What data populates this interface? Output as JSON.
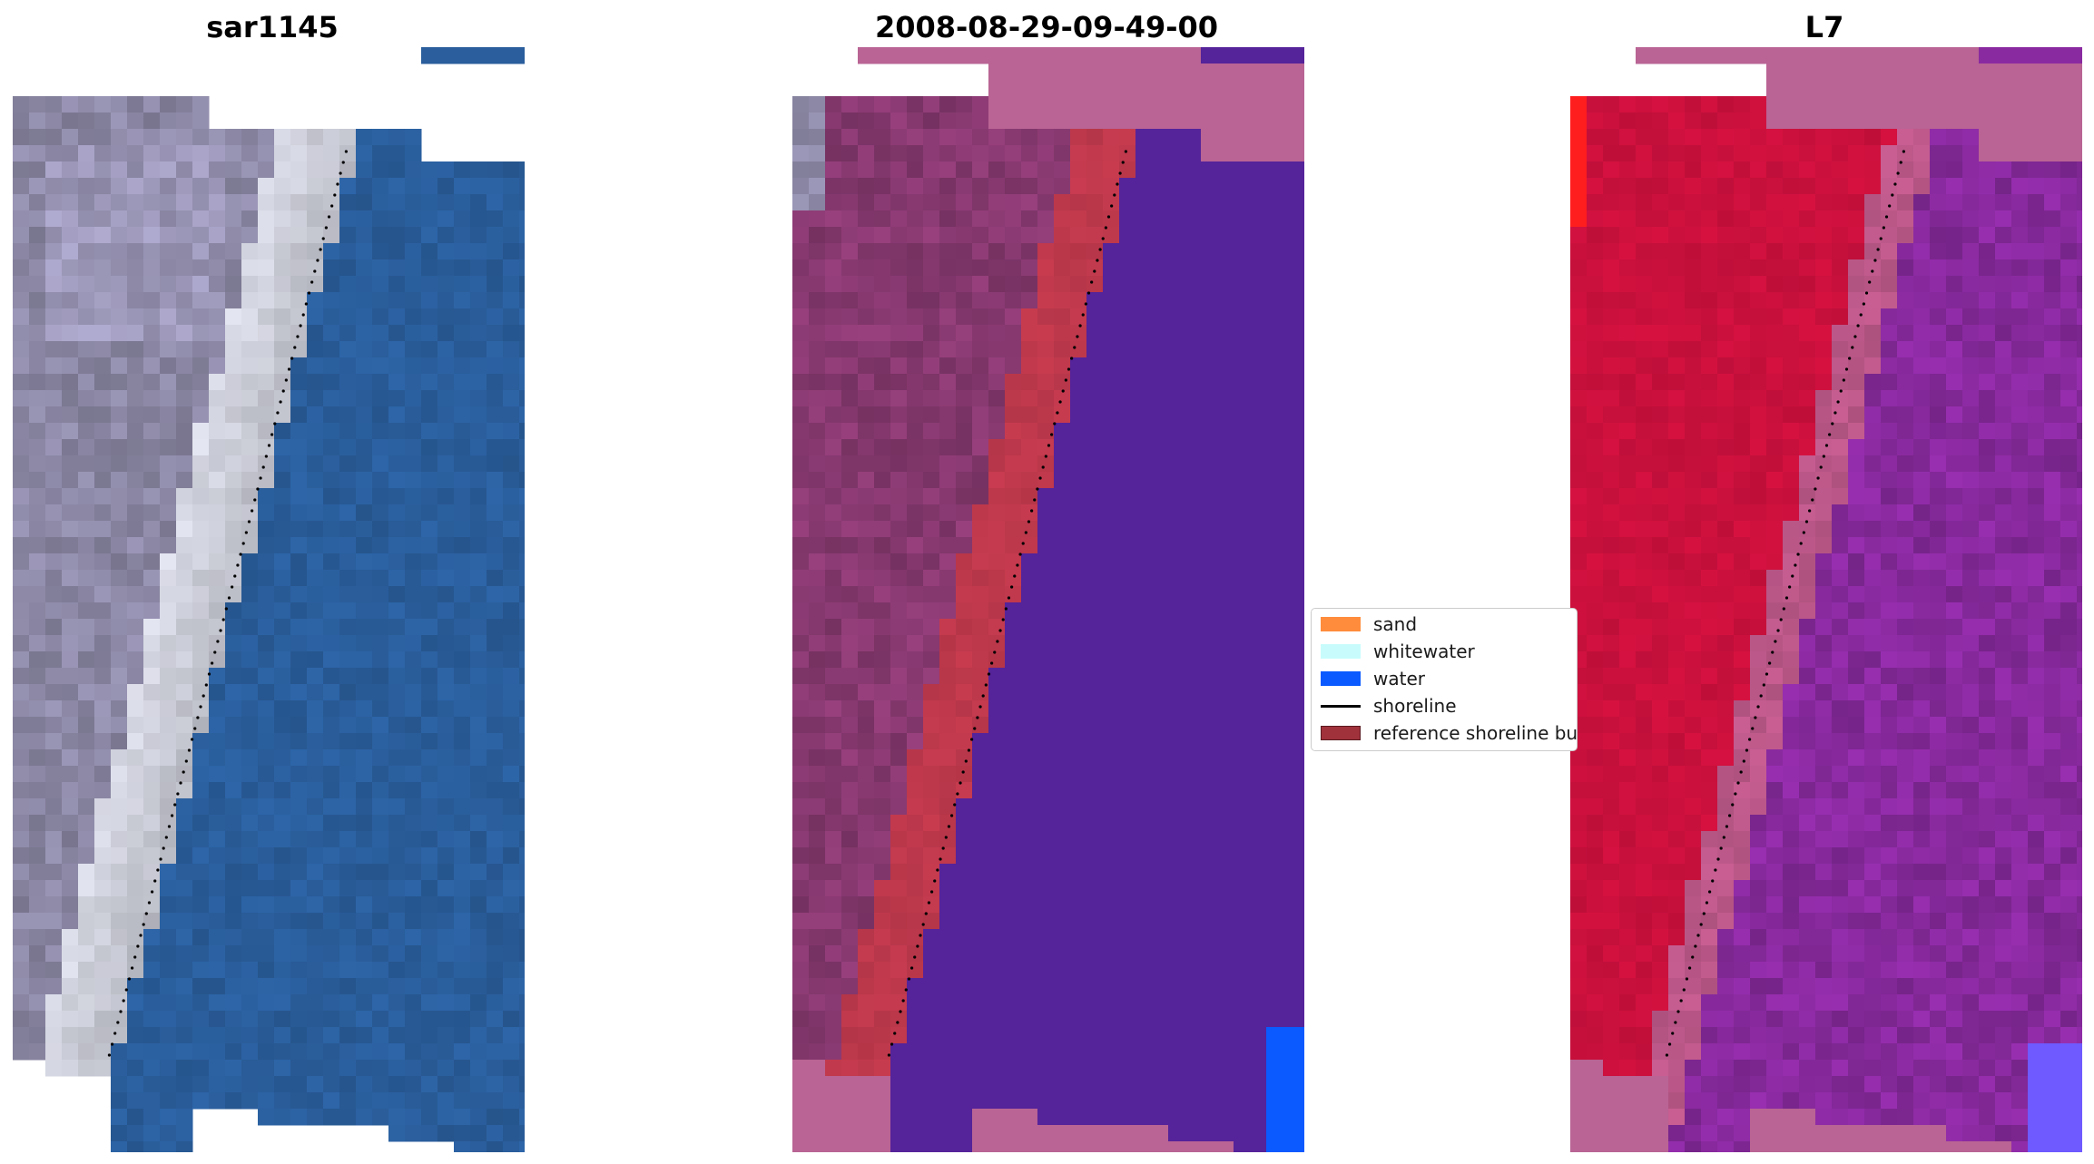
{
  "panels": [
    {
      "title": "sar1145"
    },
    {
      "title": "2008-08-29-09-49-00"
    },
    {
      "title": "L7"
    }
  ],
  "legend": {
    "items": [
      {
        "label": "sand",
        "color": "#ff8c3c",
        "kind": "patch"
      },
      {
        "label": "whitewater",
        "color": "#c8fcfc",
        "kind": "patch"
      },
      {
        "label": "water",
        "color": "#0a5aff",
        "kind": "patch"
      },
      {
        "label": "shoreline",
        "color": "#000000",
        "kind": "line"
      },
      {
        "label": "reference shoreline buffer",
        "color": "#a0323c",
        "kind": "patch"
      }
    ]
  },
  "colors": {
    "water_rgb": "#2a5e9c",
    "land_rgb": "#8e8aa8",
    "whitewater_rgb": "#e6e8f4",
    "class_land": "#8a3a72",
    "class_water": "#55239a",
    "class_buffer": "#c43a4e",
    "class_nodata": "#b96494",
    "index_land": "#c8103c",
    "index_water": "#8a2aa0",
    "index_nodata": "#b96494"
  }
}
